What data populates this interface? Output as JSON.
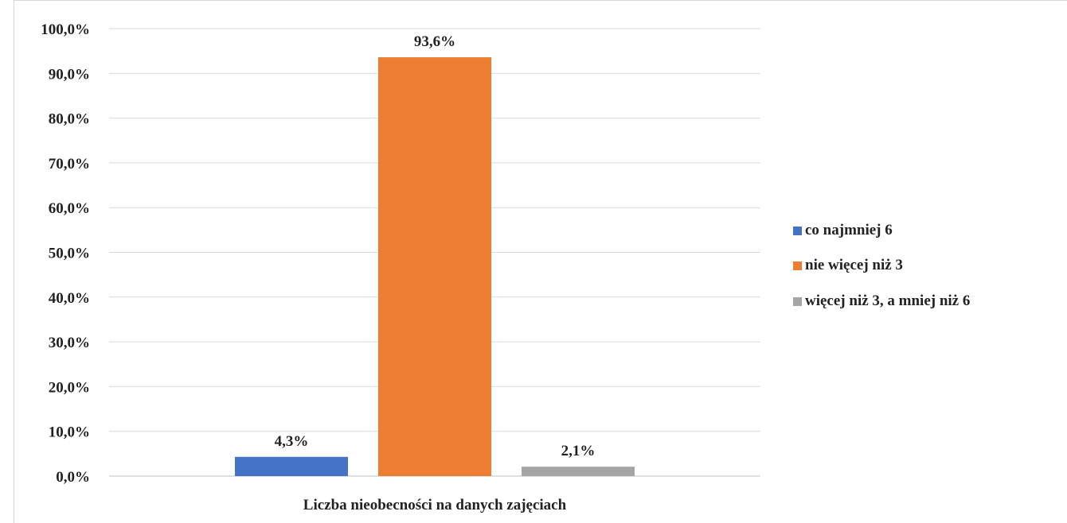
{
  "chart_data": {
    "type": "bar",
    "title": "",
    "xlabel": "Liczba nieobecności na danych zajęciach",
    "ylabel": "",
    "ylim": [
      0,
      100
    ],
    "y_ticks": [
      "0,0%",
      "10,0%",
      "20,0%",
      "30,0%",
      "40,0%",
      "50,0%",
      "60,0%",
      "70,0%",
      "80,0%",
      "90,0%",
      "100,0%"
    ],
    "grid": true,
    "legend_position": "right",
    "categories": [
      "Liczba nieobecności na danych zajęciach"
    ],
    "series": [
      {
        "name": "co najmniej 6",
        "values": [
          4.3
        ],
        "label": "4,3%",
        "color": "#4472c4"
      },
      {
        "name": "nie więcej niż 3",
        "values": [
          93.6
        ],
        "label": "93,6%",
        "color": "#ed7d31"
      },
      {
        "name": "więcej niż 3, a mniej niż 6",
        "values": [
          2.1
        ],
        "label": "2,1%",
        "color": "#a5a5a5"
      }
    ]
  }
}
